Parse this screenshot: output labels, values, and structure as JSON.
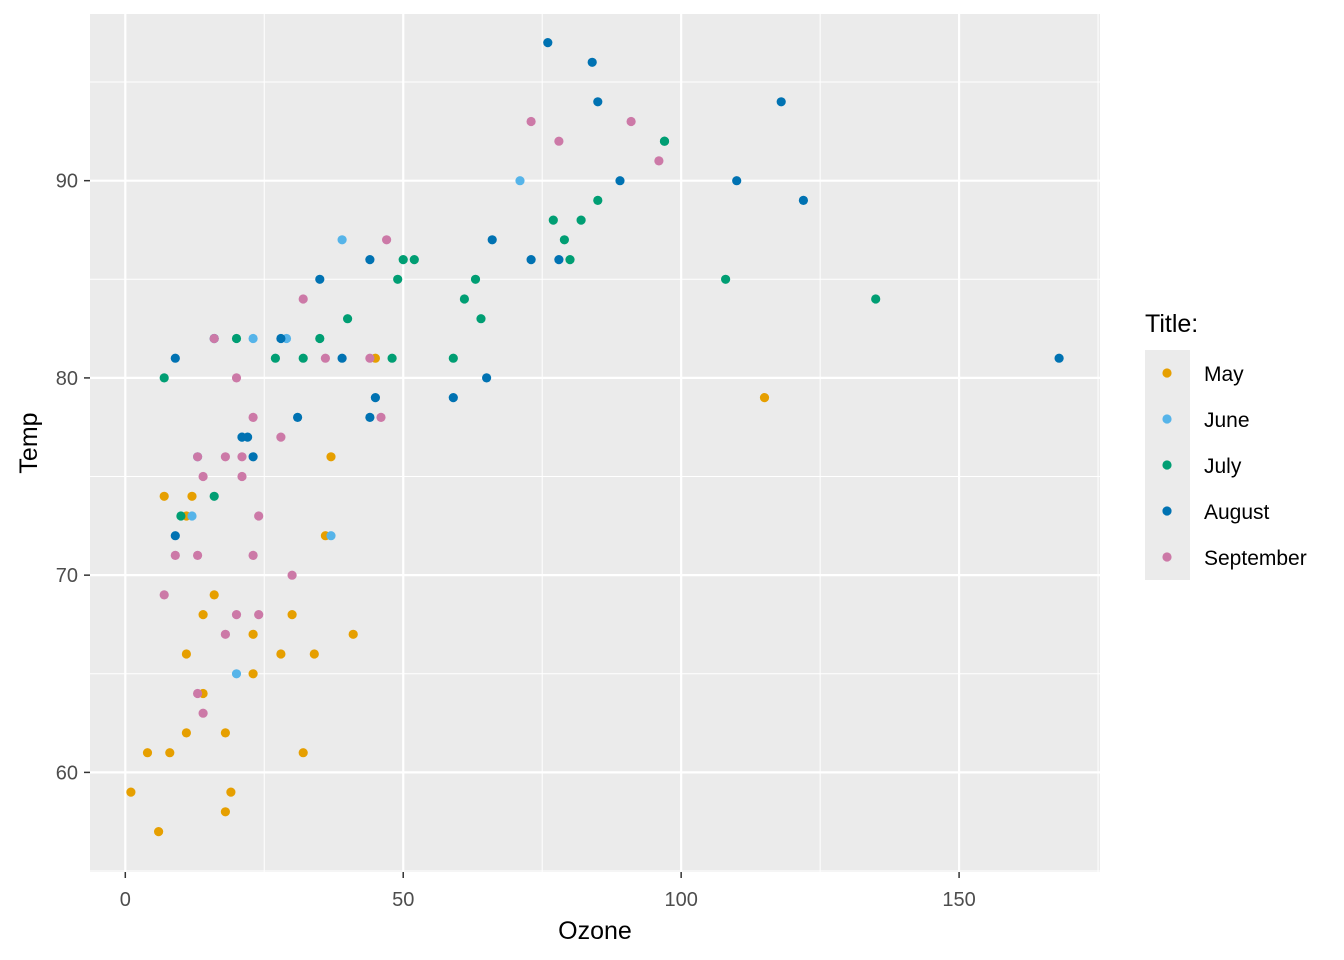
{
  "chart_data": {
    "type": "scatter",
    "title": "",
    "xlabel": "Ozone",
    "ylabel": "Temp",
    "xlim": [
      -6.35,
      175.35
    ],
    "ylim": [
      54.95,
      98.45
    ],
    "x_ticks": [
      0,
      50,
      100,
      150
    ],
    "x_tick_labels": [
      "0",
      "50",
      "100",
      "150"
    ],
    "y_ticks": [
      60,
      70,
      80,
      90
    ],
    "y_tick_labels": [
      "60",
      "70",
      "80",
      "90"
    ],
    "grid": true,
    "legend": {
      "title": "Title:",
      "position": "right"
    },
    "series": [
      {
        "name": "May",
        "color": "#E69F00",
        "points": [
          [
            41,
            67
          ],
          [
            36,
            72
          ],
          [
            12,
            74
          ],
          [
            18,
            62
          ],
          [
            28,
            66
          ],
          [
            23,
            65
          ],
          [
            19,
            59
          ],
          [
            8,
            61
          ],
          [
            7,
            74
          ],
          [
            16,
            69
          ],
          [
            11,
            66
          ],
          [
            14,
            68
          ],
          [
            18,
            58
          ],
          [
            14,
            64
          ],
          [
            34,
            66
          ],
          [
            6,
            57
          ],
          [
            30,
            68
          ],
          [
            11,
            62
          ],
          [
            1,
            59
          ],
          [
            11,
            73
          ],
          [
            4,
            61
          ],
          [
            32,
            61
          ],
          [
            23,
            67
          ],
          [
            45,
            81
          ],
          [
            115,
            79
          ],
          [
            37,
            76
          ]
        ]
      },
      {
        "name": "June",
        "color": "#56B4E9",
        "points": [
          [
            29,
            82
          ],
          [
            71,
            90
          ],
          [
            39,
            87
          ],
          [
            23,
            82
          ],
          [
            21,
            77
          ],
          [
            37,
            72
          ],
          [
            20,
            65
          ],
          [
            12,
            73
          ],
          [
            13,
            76
          ]
        ]
      },
      {
        "name": "July",
        "color": "#009E73",
        "points": [
          [
            135,
            84
          ],
          [
            49,
            85
          ],
          [
            32,
            81
          ],
          [
            64,
            83
          ],
          [
            40,
            83
          ],
          [
            77,
            88
          ],
          [
            97,
            92
          ],
          [
            97,
            92
          ],
          [
            85,
            89
          ],
          [
            10,
            73
          ],
          [
            27,
            81
          ],
          [
            7,
            80
          ],
          [
            48,
            81
          ],
          [
            35,
            82
          ],
          [
            61,
            84
          ],
          [
            79,
            87
          ],
          [
            63,
            85
          ],
          [
            16,
            74
          ],
          [
            80,
            86
          ],
          [
            108,
            85
          ],
          [
            20,
            82
          ],
          [
            52,
            86
          ],
          [
            82,
            88
          ],
          [
            50,
            86
          ],
          [
            59,
            81
          ]
        ]
      },
      {
        "name": "August",
        "color": "#0072B2",
        "points": [
          [
            39,
            81
          ],
          [
            9,
            81
          ],
          [
            16,
            82
          ],
          [
            78,
            86
          ],
          [
            35,
            85
          ],
          [
            66,
            87
          ],
          [
            122,
            89
          ],
          [
            89,
            90
          ],
          [
            110,
            90
          ],
          [
            44,
            86
          ],
          [
            28,
            82
          ],
          [
            65,
            80
          ],
          [
            22,
            77
          ],
          [
            59,
            79
          ],
          [
            23,
            76
          ],
          [
            31,
            78
          ],
          [
            44,
            78
          ],
          [
            21,
            77
          ],
          [
            9,
            72
          ],
          [
            45,
            79
          ],
          [
            168,
            81
          ],
          [
            73,
            86
          ],
          [
            76,
            97
          ],
          [
            118,
            94
          ],
          [
            84,
            96
          ],
          [
            85,
            94
          ]
        ]
      },
      {
        "name": "September",
        "color": "#CC79A7",
        "points": [
          [
            96,
            91
          ],
          [
            78,
            92
          ],
          [
            73,
            93
          ],
          [
            91,
            93
          ],
          [
            47,
            87
          ],
          [
            32,
            84
          ],
          [
            20,
            80
          ],
          [
            23,
            78
          ],
          [
            21,
            75
          ],
          [
            24,
            73
          ],
          [
            44,
            81
          ],
          [
            21,
            76
          ],
          [
            28,
            77
          ],
          [
            9,
            71
          ],
          [
            13,
            71
          ],
          [
            46,
            78
          ],
          [
            18,
            67
          ],
          [
            13,
            76
          ],
          [
            24,
            68
          ],
          [
            16,
            82
          ],
          [
            13,
            64
          ],
          [
            23,
            71
          ],
          [
            36,
            81
          ],
          [
            7,
            69
          ],
          [
            14,
            63
          ],
          [
            30,
            70
          ],
          [
            14,
            75
          ],
          [
            18,
            76
          ],
          [
            20,
            68
          ]
        ]
      }
    ]
  }
}
